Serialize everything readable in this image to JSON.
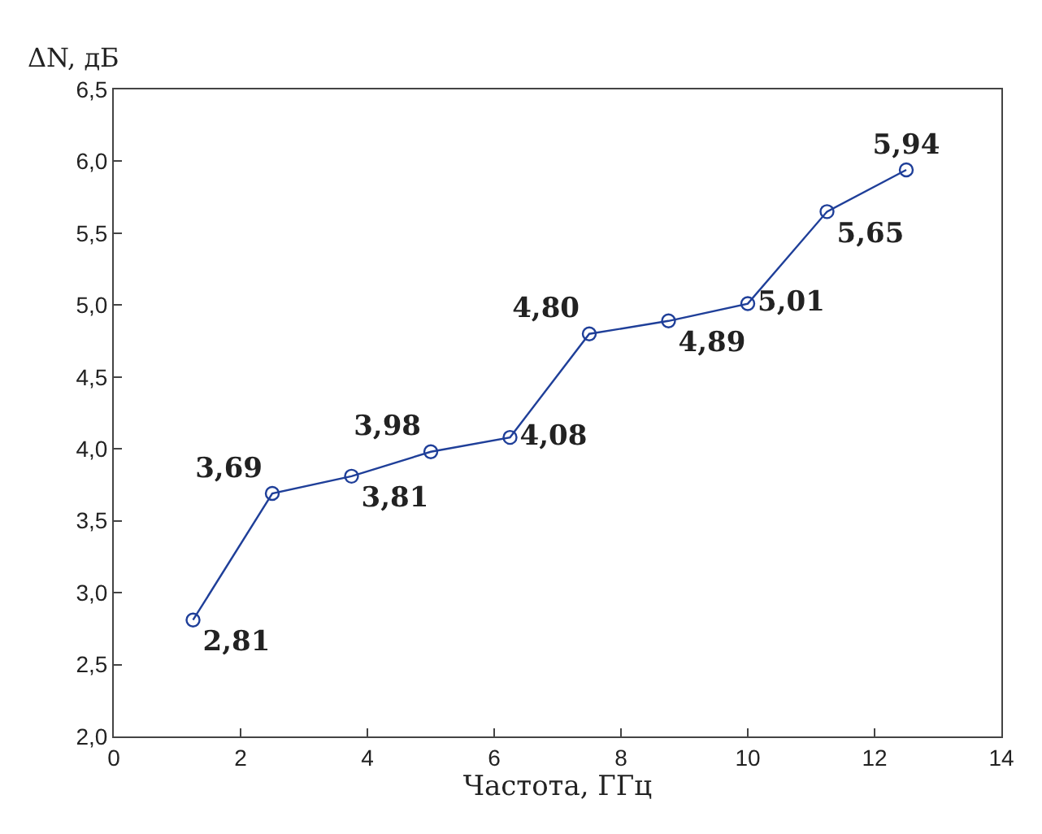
{
  "chart_data": {
    "type": "line",
    "xlabel": "Частота, ГГц",
    "ylabel": "ΔN, дБ",
    "x": [
      1.25,
      2.5,
      3.75,
      5,
      6.25,
      7.5,
      8.75,
      10,
      11.25,
      12.5
    ],
    "series": [
      {
        "color": "#1f3f99",
        "values": [
          2.81,
          3.69,
          3.81,
          3.98,
          4.08,
          4.8,
          4.89,
          5.01,
          5.65,
          5.94
        ],
        "value_labels": [
          "2,81",
          "3,69",
          "3,81",
          "3,98",
          "4,08",
          "4,80",
          "4,89",
          "5,01",
          "5,65",
          "5,94"
        ]
      }
    ],
    "xlim": [
      0,
      14
    ],
    "xticks": [
      0,
      2,
      4,
      6,
      8,
      10,
      12,
      14
    ],
    "ylim": [
      2,
      6.5
    ],
    "yticks": [
      {
        "value": 2,
        "label": "2,0"
      },
      {
        "value": 2.5,
        "label": "2,5"
      },
      {
        "value": 3,
        "label": "3,0"
      },
      {
        "value": 3.5,
        "label": "3,5"
      },
      {
        "value": 4,
        "label": "4,0"
      },
      {
        "value": 4.5,
        "label": "4,5"
      },
      {
        "value": 5,
        "label": "5,0"
      },
      {
        "value": 5.5,
        "label": "5,5"
      },
      {
        "value": 6,
        "label": "6,0"
      },
      {
        "value": 6.5,
        "label": "6,5"
      }
    ],
    "marker": "circle",
    "line_style": "solid"
  }
}
